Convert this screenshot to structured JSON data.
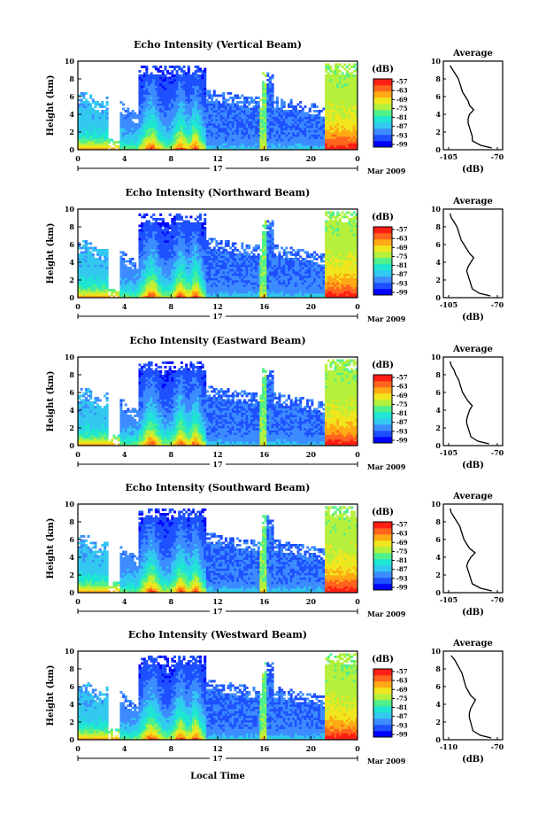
{
  "figure": {
    "x_axis_label": "Local Time",
    "date_label": "Mar 2009",
    "day_label": "17"
  },
  "colors": {
    "scale": [
      "#0000ff",
      "#1e50ff",
      "#3c8cff",
      "#32c8f0",
      "#1ee6d2",
      "#50f08c",
      "#b4f03c",
      "#f0e61e",
      "#ffaa14",
      "#ff641e",
      "#ff1e14"
    ],
    "profile_line": "#000000",
    "frame": "#000000"
  },
  "chart_data": [
    {
      "type": "heatmap",
      "title": "Echo Intensity (Vertical Beam)",
      "ylabel": "Height (km)",
      "xlim": [
        0,
        24
      ],
      "ylim": [
        0,
        10
      ],
      "xticks": [
        "0",
        "4",
        "8",
        "12",
        "16",
        "20",
        "0"
      ],
      "yticks": [
        "0",
        "2",
        "4",
        "6",
        "8",
        "10"
      ],
      "colorbar": {
        "label": "(dB)",
        "ticks": [
          "-57",
          "-63",
          "-69",
          "-75",
          "-81",
          "-87",
          "-93",
          "-99"
        ]
      },
      "profile": {
        "title": "Average",
        "xlabel": "(dB)",
        "xticks": [
          "-105",
          "-70"
        ],
        "xlim": [
          -105,
          -70
        ],
        "height_km": [
          0.2,
          0.5,
          1.0,
          1.5,
          2.0,
          2.5,
          3.0,
          3.5,
          4.0,
          4.5,
          5.0,
          5.5,
          6.0,
          6.5,
          7.0,
          7.5,
          8.0,
          8.5,
          9.0,
          9.5
        ],
        "db": [
          -74,
          -82,
          -88,
          -88,
          -89,
          -90,
          -91,
          -91,
          -90,
          -87,
          -90,
          -91,
          -93,
          -95,
          -96,
          -97,
          -98,
          -100,
          -102,
          -104
        ]
      }
    },
    {
      "type": "heatmap",
      "title": "Echo Intensity (Northward Beam)",
      "ylabel": "Height (km)",
      "xlim": [
        0,
        24
      ],
      "ylim": [
        0,
        10
      ],
      "xticks": [
        "0",
        "4",
        "8",
        "12",
        "16",
        "20",
        "0"
      ],
      "yticks": [
        "0",
        "2",
        "4",
        "6",
        "8",
        "10"
      ],
      "colorbar": {
        "label": "(dB)",
        "ticks": [
          "-57",
          "-63",
          "-69",
          "-75",
          "-81",
          "-87",
          "-93",
          "-99"
        ]
      },
      "profile": {
        "title": "Average",
        "xlabel": "(dB)",
        "xticks": [
          "-105",
          "-70"
        ],
        "xlim": [
          -105,
          -70
        ],
        "height_km": [
          0.2,
          0.5,
          1.0,
          1.5,
          2.0,
          2.5,
          3.0,
          3.5,
          4.0,
          4.5,
          5.0,
          5.5,
          6.0,
          6.5,
          7.0,
          7.5,
          8.0,
          8.5,
          9.0,
          9.5
        ],
        "db": [
          -75,
          -83,
          -88,
          -89,
          -90,
          -91,
          -92,
          -91,
          -89,
          -87,
          -90,
          -92,
          -94,
          -96,
          -97,
          -98,
          -99,
          -101,
          -103,
          -104
        ]
      }
    },
    {
      "type": "heatmap",
      "title": "Echo Intensity (Eastward Beam)",
      "ylabel": "Height (km)",
      "xlim": [
        0,
        24
      ],
      "ylim": [
        0,
        10
      ],
      "xticks": [
        "0",
        "4",
        "8",
        "12",
        "16",
        "20",
        "0"
      ],
      "yticks": [
        "0",
        "2",
        "4",
        "6",
        "8",
        "10"
      ],
      "colorbar": {
        "label": "(dB)",
        "ticks": [
          "-57",
          "-63",
          "-69",
          "-75",
          "-81",
          "-87",
          "-93",
          "-99"
        ]
      },
      "profile": {
        "title": "Average",
        "xlabel": "(dB)",
        "xticks": [
          "-105",
          "-70"
        ],
        "xlim": [
          -105,
          -70
        ],
        "height_km": [
          0.2,
          0.5,
          1.0,
          1.5,
          2.0,
          2.5,
          3.0,
          3.5,
          4.0,
          4.5,
          5.0,
          5.5,
          6.0,
          6.5,
          7.0,
          7.5,
          8.0,
          8.5,
          9.0,
          9.5
        ],
        "db": [
          -76,
          -84,
          -89,
          -90,
          -91,
          -92,
          -92,
          -91,
          -90,
          -88,
          -91,
          -93,
          -95,
          -96,
          -97,
          -98,
          -100,
          -101,
          -103,
          -104
        ]
      }
    },
    {
      "type": "heatmap",
      "title": "Echo Intensity (Southward Beam)",
      "ylabel": "Height (km)",
      "xlim": [
        0,
        24
      ],
      "ylim": [
        0,
        10
      ],
      "xticks": [
        "0",
        "4",
        "8",
        "12",
        "16",
        "20",
        "0"
      ],
      "yticks": [
        "0",
        "2",
        "4",
        "6",
        "8",
        "10"
      ],
      "colorbar": {
        "label": "(dB)",
        "ticks": [
          "-57",
          "-63",
          "-69",
          "-75",
          "-81",
          "-87",
          "-93",
          "-99"
        ]
      },
      "profile": {
        "title": "Average",
        "xlabel": "(dB)",
        "xticks": [
          "-105",
          "-70"
        ],
        "xlim": [
          -105,
          -70
        ],
        "height_km": [
          0.2,
          0.5,
          1.0,
          1.5,
          2.0,
          2.5,
          3.0,
          3.5,
          4.0,
          4.5,
          5.0,
          5.5,
          6.0,
          6.5,
          7.0,
          7.5,
          8.0,
          8.5,
          9.0,
          9.5
        ],
        "db": [
          -74,
          -82,
          -88,
          -89,
          -90,
          -91,
          -92,
          -91,
          -89,
          -86,
          -90,
          -92,
          -94,
          -95,
          -96,
          -97,
          -99,
          -101,
          -103,
          -104
        ]
      }
    },
    {
      "type": "heatmap",
      "title": "Echo Intensity (Westward Beam)",
      "ylabel": "Height (km)",
      "xlim": [
        0,
        24
      ],
      "ylim": [
        0,
        10
      ],
      "xticks": [
        "0",
        "4",
        "8",
        "12",
        "16",
        "20",
        "0"
      ],
      "yticks": [
        "0",
        "2",
        "4",
        "6",
        "8",
        "10"
      ],
      "colorbar": {
        "label": "(dB)",
        "ticks": [
          "-57",
          "-63",
          "-69",
          "-75",
          "-81",
          "-87",
          "-93",
          "-99"
        ]
      },
      "profile": {
        "title": "Average",
        "xlabel": "(dB)",
        "xticks": [
          "-110",
          "-70"
        ],
        "xlim": [
          -110,
          -70
        ],
        "height_km": [
          0.2,
          0.5,
          1.0,
          1.5,
          2.0,
          2.5,
          3.0,
          3.5,
          4.0,
          4.5,
          5.0,
          5.5,
          6.0,
          6.5,
          7.0,
          7.5,
          8.0,
          8.5,
          9.0,
          9.5
        ],
        "db": [
          -75,
          -84,
          -90,
          -91,
          -92,
          -93,
          -93,
          -92,
          -90,
          -88,
          -92,
          -94,
          -96,
          -97,
          -98,
          -99,
          -101,
          -103,
          -105,
          -108
        ]
      }
    }
  ]
}
